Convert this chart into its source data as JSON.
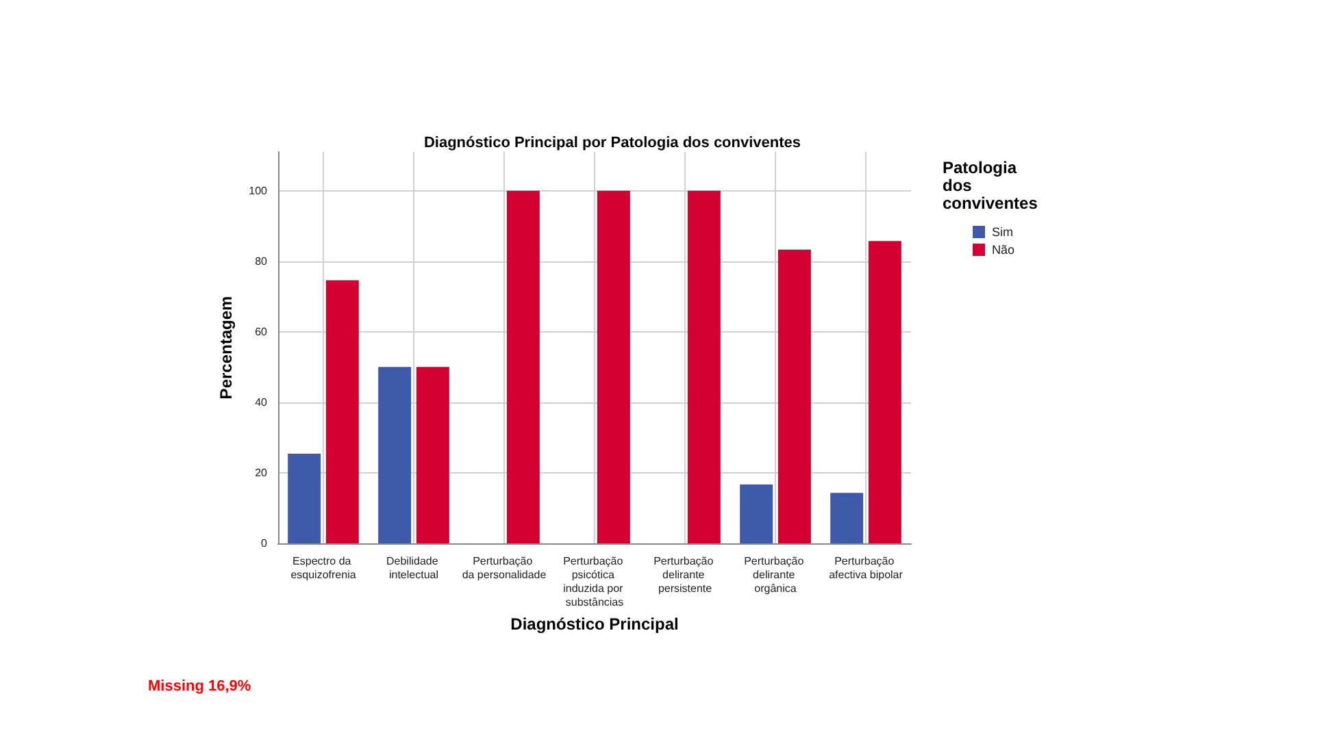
{
  "chart_data": {
    "type": "bar",
    "title": "Diagnóstico Principal por Patologia dos conviventes",
    "xlabel": "Diagnóstico Principal",
    "ylabel": "Percentagem",
    "legend_title": "Patologia dos conviventes",
    "categories": [
      "Espectro da esquizofrenia",
      "Debilidade intelectual",
      "Perturbação da personalidade",
      "Perturbação psicótica induzida por substâncias",
      "Perturbação delirante persistente",
      "Perturbação delirante orgânica",
      "Perturbação afectiva bipolar"
    ],
    "series": [
      {
        "name": "Sim",
        "color": "#3f5aa8",
        "values": [
          25.4,
          50,
          0,
          0,
          0,
          16.7,
          14.3
        ]
      },
      {
        "name": "Não",
        "color": "#d50032",
        "values": [
          74.6,
          50,
          100,
          100,
          100,
          83.3,
          85.7
        ]
      }
    ],
    "ylim": [
      0,
      111
    ],
    "yticks": [
      0,
      20,
      40,
      60,
      80,
      100
    ],
    "grid": true,
    "legend": "top right",
    "annotations": [
      "Missing 16,9%"
    ]
  }
}
